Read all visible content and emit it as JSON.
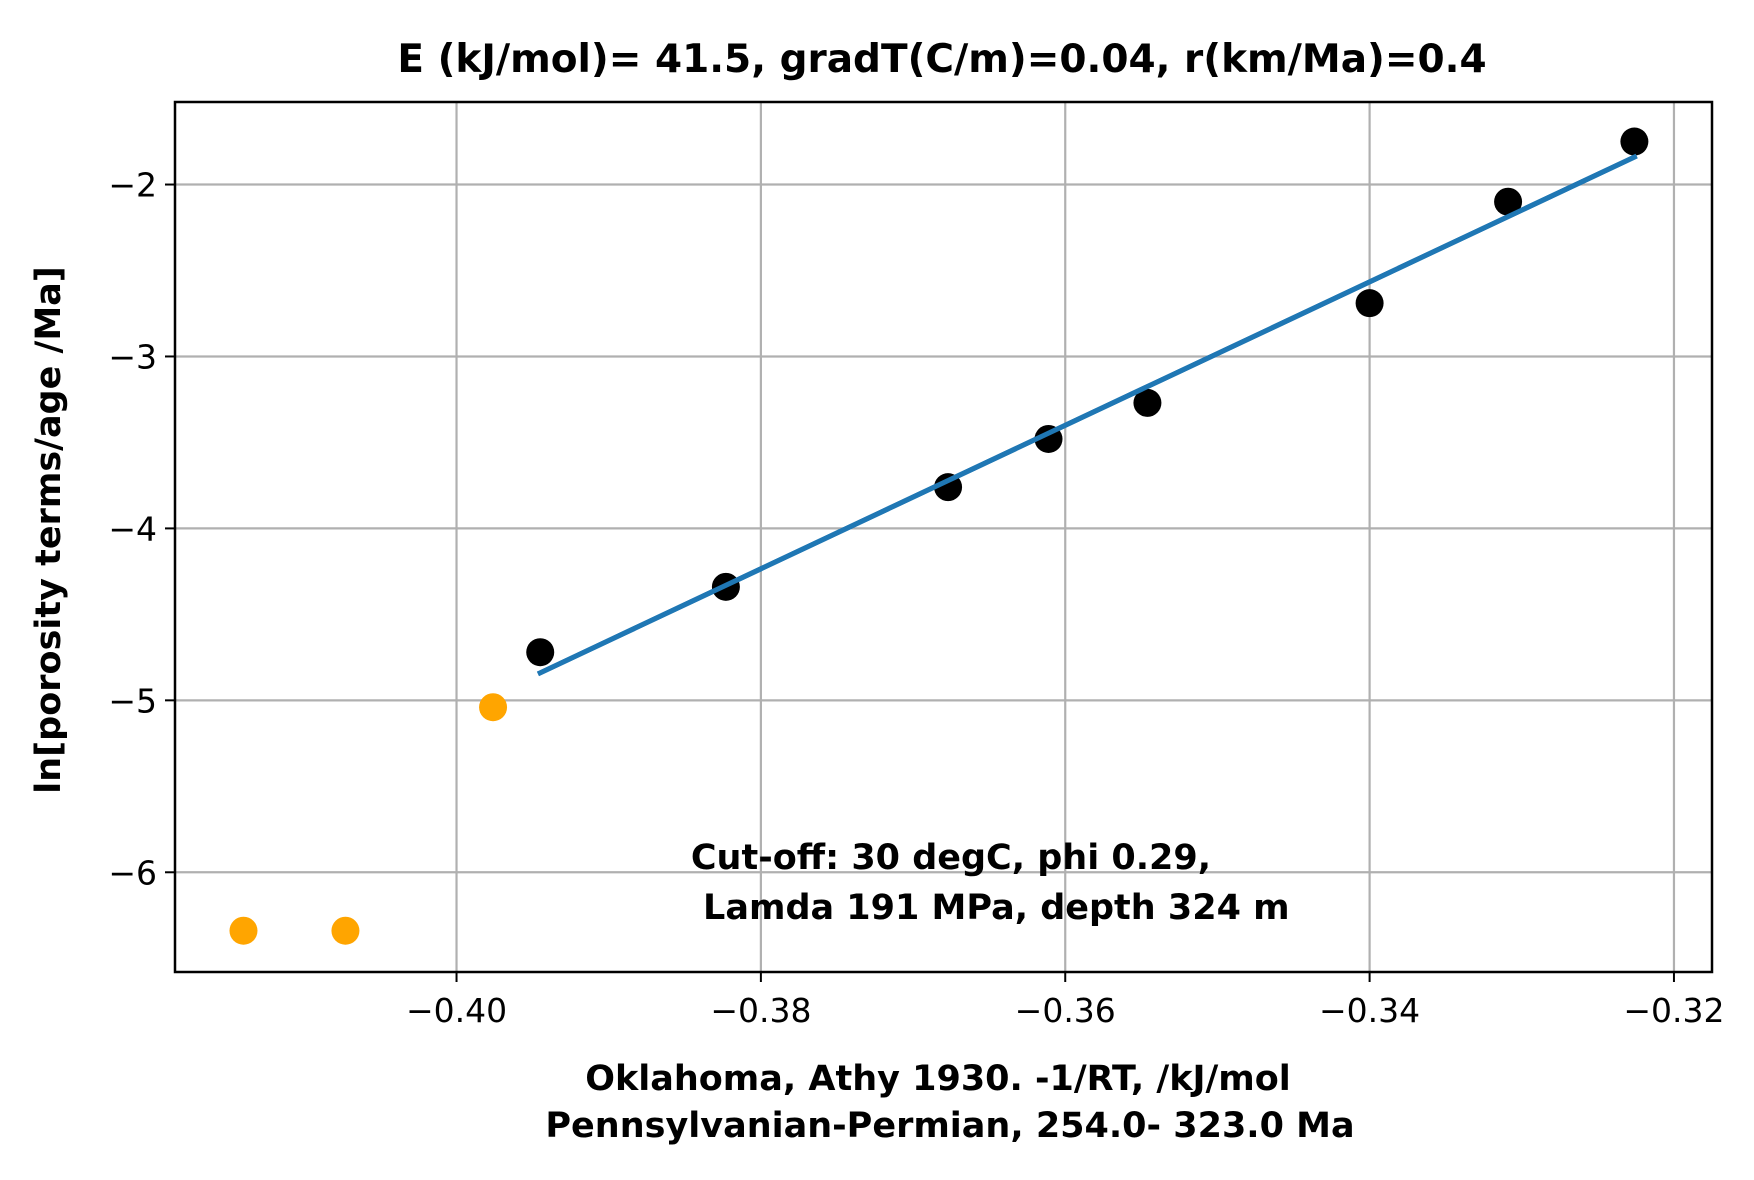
{
  "chart_data": {
    "type": "scatter",
    "title": "E (kJ/mol)= 41.5, gradT(C/m)=0.04, r(km/Ma)=0.4",
    "xlabel_lines": [
      "Oklahoma, Athy 1930.  -1/RT, /kJ/mol",
      "Pennsylvanian-Permian, 254.0- 323.0 Ma"
    ],
    "ylabel": "ln[porosity terms/age /Ma]",
    "xlim": [
      -0.4185,
      -0.3175
    ],
    "ylim": [
      -6.58,
      -1.52
    ],
    "xticks": [
      -0.4,
      -0.38,
      -0.36,
      -0.34,
      -0.32
    ],
    "xtick_labels": [
      "−0.40",
      "−0.38",
      "−0.36",
      "−0.34",
      "−0.32"
    ],
    "yticks": [
      -2,
      -3,
      -4,
      -5,
      -6
    ],
    "ytick_labels": [
      "−2",
      "−3",
      "−4",
      "−5",
      "−6"
    ],
    "grid": true,
    "annotation_lines": [
      "Cut-off: 30 degC, phi 0.29,",
      " Lamda 191 MPa, depth 324 m"
    ],
    "annotation_anchor": {
      "x": -0.3846,
      "y": -5.98
    },
    "series": [
      {
        "kind": "scatter",
        "color": "#000000",
        "points": [
          {
            "x": -0.3945,
            "y": -4.72
          },
          {
            "x": -0.3823,
            "y": -4.34
          },
          {
            "x": -0.3677,
            "y": -3.76
          },
          {
            "x": -0.3611,
            "y": -3.48
          },
          {
            "x": -0.3546,
            "y": -3.27
          },
          {
            "x": -0.34,
            "y": -2.69
          },
          {
            "x": -0.3309,
            "y": -2.1
          },
          {
            "x": -0.3226,
            "y": -1.75
          }
        ]
      },
      {
        "kind": "scatter",
        "color": "#ffa500",
        "points": [
          {
            "x": -0.414,
            "y": -6.34
          },
          {
            "x": -0.4073,
            "y": -6.34
          },
          {
            "x": -0.3976,
            "y": -5.04
          }
        ]
      },
      {
        "kind": "line",
        "color": "#1f77b4",
        "points": [
          {
            "x": -0.3945,
            "y": -4.84
          },
          {
            "x": -0.3226,
            "y": -1.84
          }
        ]
      }
    ]
  }
}
